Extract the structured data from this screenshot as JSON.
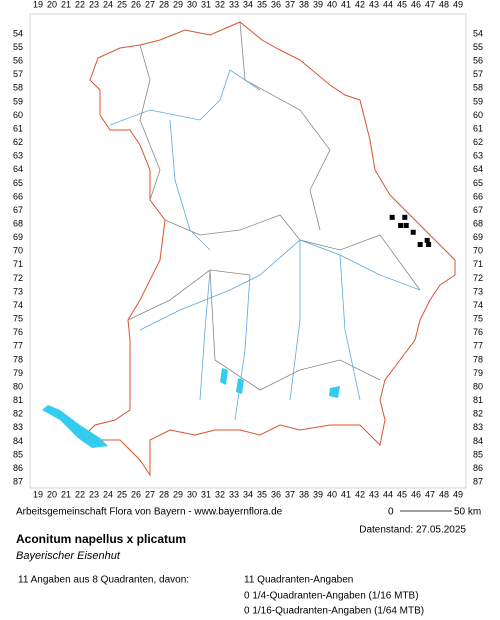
{
  "map": {
    "x_labels": [
      19,
      20,
      21,
      22,
      23,
      24,
      25,
      26,
      27,
      28,
      29,
      30,
      31,
      32,
      33,
      34,
      35,
      36,
      37,
      38,
      39,
      40,
      41,
      42,
      43,
      44,
      45,
      46,
      47,
      48,
      49
    ],
    "y_labels": [
      54,
      55,
      56,
      57,
      58,
      59,
      60,
      61,
      62,
      63,
      64,
      65,
      66,
      67,
      68,
      69,
      70,
      71,
      72,
      73,
      74,
      75,
      76,
      77,
      78,
      79,
      80,
      81,
      82,
      83,
      84,
      85,
      86,
      87
    ],
    "records": [
      {
        "x": 44.3,
        "y": 67.5
      },
      {
        "x": 45.2,
        "y": 67.5
      },
      {
        "x": 44.9,
        "y": 68.1
      },
      {
        "x": 45.3,
        "y": 68.1
      },
      {
        "x": 45.8,
        "y": 68.6
      },
      {
        "x": 46.8,
        "y": 69.2
      },
      {
        "x": 46.3,
        "y": 69.5
      },
      {
        "x": 46.9,
        "y": 69.5
      }
    ]
  },
  "footer": {
    "source": "Arbeitsgemeinschaft Flora von Bayern - www.bayernflora.de",
    "scale_start": "0",
    "scale_end": "50 km",
    "date": "Datenstand: 27.05.2025",
    "title": "Aconitum napellus x plicatum",
    "subtitle": "Bayerischer Eisenhut",
    "summary": "11 Angaben aus 8 Quadranten, davon:",
    "details": [
      "11 Quadranten-Angaben",
      "0 1/4-Quadranten-Angaben (1/16 MTB)",
      "0 1/16-Quadranten-Angaben (1/64 MTB)"
    ]
  }
}
